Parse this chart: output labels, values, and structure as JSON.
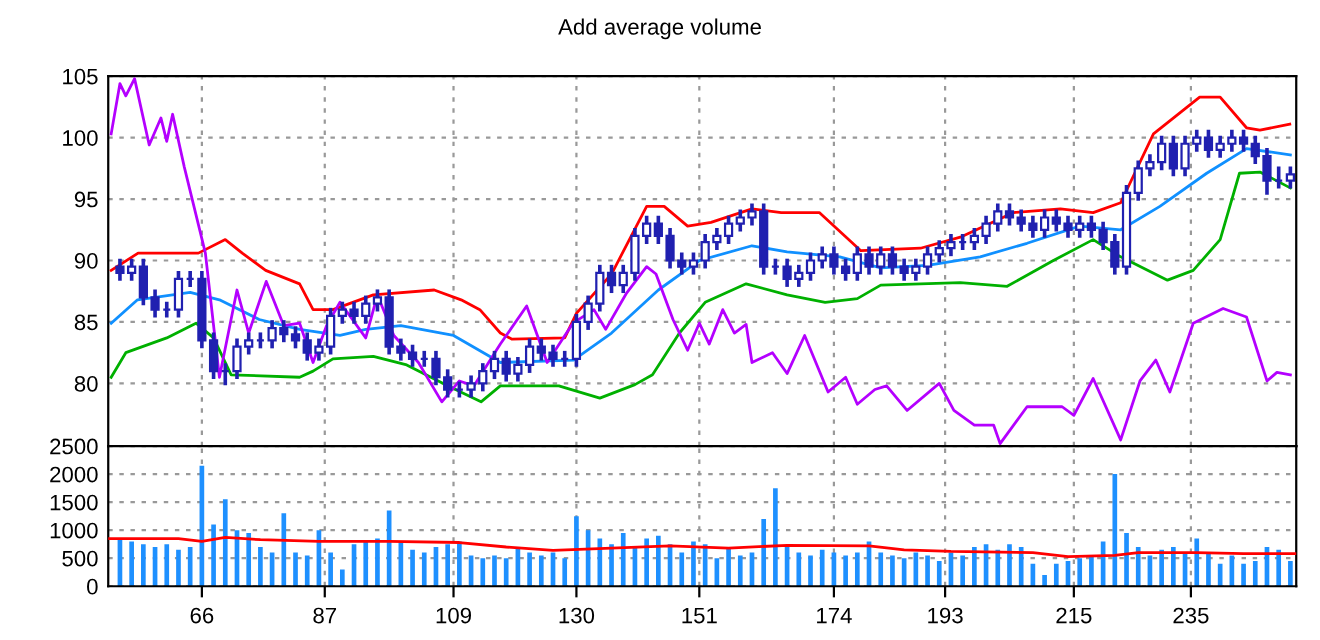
{
  "chart_data": [
    {
      "type": "candlestick",
      "title": "Add average volume",
      "color": "#2020b0",
      "x": [
        52,
        54,
        56,
        58,
        60,
        62,
        64,
        66,
        68,
        70,
        72,
        74,
        76,
        78,
        80,
        82,
        84,
        86,
        88,
        90,
        92,
        94,
        96,
        98,
        100,
        102,
        104,
        106,
        108,
        110,
        112,
        114,
        116,
        118,
        120,
        122,
        124,
        126,
        128,
        130,
        132,
        134,
        136,
        138,
        140,
        142,
        144,
        146,
        148,
        150,
        152,
        154,
        156,
        158,
        160,
        162,
        164,
        166,
        168,
        170,
        172,
        174,
        176,
        178,
        180,
        182,
        184,
        186,
        188,
        190,
        192,
        194,
        196,
        198,
        200,
        202,
        204,
        206,
        208,
        210,
        212,
        214,
        216,
        218,
        220,
        222,
        224,
        226,
        228,
        230,
        232,
        234,
        236,
        238,
        240,
        242,
        244,
        246,
        248,
        250,
        252
      ],
      "ohlc": [
        [
          89.5,
          90,
          88.5,
          89
        ],
        [
          89,
          90,
          88.5,
          89.5
        ],
        [
          89.5,
          90,
          86.5,
          87
        ],
        [
          87,
          87.5,
          85.5,
          86
        ],
        [
          86,
          86.5,
          85.5,
          86
        ],
        [
          86,
          89,
          85.5,
          88.5
        ],
        [
          88.5,
          89,
          88,
          88.5
        ],
        [
          88.5,
          89,
          83,
          83.5
        ],
        [
          83.5,
          84,
          80.5,
          81
        ],
        [
          81,
          81.5,
          80,
          81
        ],
        [
          81,
          83.5,
          80.5,
          83
        ],
        [
          83,
          84,
          82.5,
          83.5
        ],
        [
          83.5,
          84,
          83,
          83.5
        ],
        [
          83.5,
          85,
          83,
          84.5
        ],
        [
          84.5,
          85,
          83.5,
          84
        ],
        [
          84,
          84.5,
          83,
          83.5
        ],
        [
          83.5,
          84,
          82,
          82.5
        ],
        [
          82.5,
          83.5,
          82,
          83
        ],
        [
          83,
          86,
          82.5,
          85.5
        ],
        [
          85.5,
          86.5,
          85,
          86
        ],
        [
          86,
          86.5,
          85,
          85.5
        ],
        [
          85.5,
          87,
          85,
          86.5
        ],
        [
          86.5,
          87.5,
          86,
          87
        ],
        [
          87,
          87.5,
          82.5,
          83
        ],
        [
          83,
          83.5,
          82,
          82.5
        ],
        [
          82.5,
          83,
          81.5,
          82
        ],
        [
          82,
          82.5,
          81.5,
          82
        ],
        [
          82,
          82.5,
          80,
          80.5
        ],
        [
          80.5,
          81,
          79,
          79.5
        ],
        [
          79.5,
          80,
          79,
          79.5
        ],
        [
          79.5,
          80.5,
          79,
          80
        ],
        [
          80,
          81.5,
          79.5,
          81
        ],
        [
          81,
          82.5,
          80.5,
          82
        ],
        [
          82,
          82.5,
          80.3,
          80.8
        ],
        [
          80.8,
          82,
          80.3,
          81.5
        ],
        [
          81.5,
          83.5,
          81,
          83
        ],
        [
          83,
          83.5,
          82,
          82.5
        ],
        [
          82.5,
          83,
          81.5,
          82
        ],
        [
          82,
          82.5,
          81.5,
          82
        ],
        [
          82,
          85.5,
          81.5,
          85
        ],
        [
          85,
          87,
          84.5,
          86.5
        ],
        [
          86.5,
          89.5,
          86,
          89
        ],
        [
          89,
          89.5,
          87.5,
          88
        ],
        [
          88,
          89.5,
          87.5,
          89
        ],
        [
          89,
          92.5,
          88.5,
          92
        ],
        [
          92,
          93.5,
          91.5,
          93
        ],
        [
          93,
          93.5,
          91.5,
          92
        ],
        [
          92,
          92.5,
          89.5,
          90
        ],
        [
          90,
          90.5,
          89,
          89.5
        ],
        [
          89.5,
          90.5,
          89,
          90
        ],
        [
          90,
          92,
          89.5,
          91.5
        ],
        [
          91.5,
          92.5,
          91,
          92
        ],
        [
          92,
          93.5,
          91.5,
          93
        ],
        [
          93,
          94,
          92.5,
          93.5
        ],
        [
          93.5,
          94.5,
          93,
          94
        ],
        [
          94,
          94.5,
          89,
          89.5
        ],
        [
          89.5,
          90,
          89,
          89.5
        ],
        [
          89.5,
          90,
          88,
          88.5
        ],
        [
          88.5,
          89.5,
          88,
          89
        ],
        [
          89,
          90.5,
          88.5,
          90
        ],
        [
          90,
          91,
          89.5,
          90.5
        ],
        [
          90.5,
          91,
          89,
          89.5
        ],
        [
          89.5,
          90,
          88.5,
          89
        ],
        [
          89,
          91,
          88.5,
          90.5
        ],
        [
          90.5,
          91,
          89,
          89.5
        ],
        [
          89.5,
          91,
          89,
          90.5
        ],
        [
          90.5,
          91,
          89,
          89.5
        ],
        [
          89.5,
          90,
          88.5,
          89
        ],
        [
          89,
          90,
          88.5,
          89.5
        ],
        [
          89.5,
          91,
          89,
          90.5
        ],
        [
          90.5,
          91.5,
          90,
          91
        ],
        [
          91,
          92,
          90.5,
          91.5
        ],
        [
          91.5,
          92,
          91,
          91.5
        ],
        [
          91.5,
          92.5,
          91,
          92
        ],
        [
          92,
          93.5,
          91.5,
          93
        ],
        [
          93,
          94.5,
          92.5,
          94
        ],
        [
          94,
          94.5,
          93,
          93.5
        ],
        [
          93.5,
          94,
          92.5,
          93
        ],
        [
          93,
          93.5,
          92,
          92.5
        ],
        [
          92.5,
          94,
          92,
          93.5
        ],
        [
          93.5,
          94,
          92.5,
          93
        ],
        [
          93,
          93.5,
          92,
          92.5
        ],
        [
          92.5,
          93.5,
          92,
          93
        ],
        [
          93,
          93.5,
          92,
          92.5
        ],
        [
          92.5,
          93,
          91,
          91.5
        ],
        [
          91.5,
          92,
          89,
          89.5
        ],
        [
          89.5,
          96,
          89,
          95.5
        ],
        [
          95.5,
          98,
          95,
          97.5
        ],
        [
          97.5,
          98.5,
          97,
          98
        ],
        [
          98,
          100,
          97.5,
          99.5
        ],
        [
          99.5,
          100,
          97,
          97.5
        ],
        [
          97.5,
          100,
          97,
          99.5
        ],
        [
          99.5,
          100.5,
          99,
          100
        ],
        [
          100,
          100.5,
          98.5,
          99
        ],
        [
          99,
          100,
          98.5,
          99.5
        ],
        [
          99.5,
          100.5,
          99,
          100
        ],
        [
          100,
          100.5,
          99,
          99.5
        ],
        [
          99.5,
          100,
          98,
          98.5
        ],
        [
          98.5,
          99,
          95.5,
          96.5
        ],
        [
          96.5,
          97.5,
          96,
          96.5
        ],
        [
          96.5,
          97.5,
          96,
          97
        ]
      ],
      "series": [
        {
          "type": "line",
          "color": "#ff0000",
          "x": [
            50.5,
            55.1,
            65.4,
            70,
            72.9,
            76.9,
            82.7,
            85,
            88.4,
            95.3,
            105.7,
            110.3,
            113.5,
            117,
            119,
            128,
            130,
            136,
            142,
            145,
            149,
            153,
            160,
            165,
            171.5,
            178.6,
            188.8,
            195.6,
            204.7,
            212.7,
            218.3,
            223,
            228.6,
            236.5,
            240,
            244.5,
            246.8,
            251.9
          ],
          "values": [
            89.2,
            90.6,
            90.6,
            91.7,
            90.6,
            89.2,
            88.1,
            86,
            86,
            87.2,
            87.6,
            86.8,
            86,
            84.1,
            83.6,
            83.7,
            85.7,
            88.9,
            94.4,
            94.4,
            92.8,
            93.1,
            94.2,
            93.9,
            93.9,
            90.8,
            91,
            91.9,
            93.9,
            94.2,
            93.9,
            94.7,
            100.3,
            103.3,
            103.3,
            100.8,
            100.6,
            101.1
          ]
        },
        {
          "type": "line",
          "color": "#1090ff",
          "x": [
            50.5,
            55,
            64,
            69,
            75.8,
            82.7,
            89.6,
            94,
            100,
            109,
            117,
            129.5,
            136,
            144,
            151,
            160,
            166,
            175,
            182,
            190,
            199,
            207,
            216,
            223,
            229.7,
            237.7,
            244.5,
            252
          ],
          "values": [
            84.9,
            86.8,
            87.4,
            86.8,
            85.2,
            84.4,
            83.9,
            84.4,
            84.7,
            83.9,
            81.7,
            81.9,
            84.1,
            87.6,
            90,
            91.2,
            90.7,
            90.3,
            89.4,
            89.6,
            90.3,
            91.4,
            92.8,
            92.5,
            94.4,
            97.1,
            99.1,
            98.6
          ]
        },
        {
          "type": "line",
          "color": "#00b000",
          "x": [
            50.5,
            53,
            60,
            65,
            68,
            71,
            82.7,
            85,
            88.4,
            95.3,
            101,
            108,
            113.7,
            117,
            127,
            134,
            140,
            143,
            147.6,
            152,
            159,
            166,
            172.5,
            178,
            182,
            195.6,
            203.6,
            211.5,
            218.3,
            223,
            231,
            235.4,
            240,
            243.3,
            246.8,
            252
          ],
          "values": [
            80.5,
            82.5,
            83.7,
            84.9,
            83.7,
            80.7,
            80.5,
            81,
            82,
            82.2,
            81.5,
            79.8,
            78.5,
            79.8,
            79.8,
            78.8,
            79.9,
            80.7,
            84.1,
            86.6,
            88.1,
            87.2,
            86.6,
            86.9,
            88,
            88.2,
            87.9,
            90,
            91.7,
            90.3,
            88.4,
            89.2,
            91.7,
            97.1,
            97.2,
            95.9
          ]
        },
        {
          "type": "line",
          "color": "#b400ff",
          "x": [
            50.5,
            52,
            53,
            54.5,
            57,
            59,
            60,
            61,
            63,
            66.6,
            69,
            72,
            74,
            77,
            80,
            82.7,
            85,
            87.3,
            89.6,
            94,
            96,
            98.8,
            103,
            107,
            110,
            112.5,
            115,
            117,
            121.5,
            125,
            129.4,
            133,
            135,
            138.5,
            142,
            143.6,
            146.5,
            149,
            151,
            152.7,
            155,
            157,
            159,
            160,
            163.5,
            166,
            169,
            173,
            176,
            178,
            181,
            183,
            186.5,
            192,
            194.5,
            198,
            201.3,
            202.4,
            207,
            213,
            215,
            218.3,
            223,
            226.3,
            229,
            231.4,
            235.4,
            240.5,
            244.5,
            248,
            249.7,
            252
          ],
          "values": [
            100.3,
            104.4,
            103.4,
            104.8,
            99.4,
            101.6,
            99.7,
            101.9,
            97.6,
            90.6,
            80.5,
            87.6,
            84.1,
            88.3,
            84.7,
            84.9,
            81.7,
            84.7,
            86.6,
            83.7,
            87.2,
            83.9,
            81.7,
            78.5,
            80.2,
            79.8,
            81.7,
            83.2,
            86.3,
            81.7,
            84.9,
            86,
            84.4,
            87.3,
            89.5,
            88.9,
            85.2,
            82.7,
            84.9,
            83.2,
            86,
            84.1,
            84.8,
            81.7,
            82.5,
            80.8,
            83.9,
            79.3,
            80.5,
            78.3,
            79.5,
            79.8,
            77.8,
            80,
            77.8,
            76.6,
            76.6,
            75.1,
            78.1,
            78.1,
            77.4,
            80.4,
            75.4,
            80.2,
            81.9,
            79.3,
            84.9,
            86.1,
            85.4,
            80.2,
            80.9,
            80.7
          ]
        }
      ],
      "xlim": [
        50,
        253
      ],
      "xticks": [
        66,
        87,
        109,
        130,
        151,
        174,
        193,
        215,
        235
      ],
      "ylim": [
        74.9,
        105
      ],
      "yticks": [
        80,
        85,
        90,
        95,
        100,
        105
      ],
      "grid": true,
      "tick_labels": "y"
    },
    {
      "type": "bar",
      "color": "#1e90ff",
      "x": [
        52,
        54,
        56,
        58,
        60,
        62,
        64,
        66,
        68,
        70,
        72,
        74,
        76,
        78,
        80,
        82,
        84,
        86,
        88,
        90,
        92,
        94,
        96,
        98,
        100,
        102,
        104,
        106,
        108,
        110,
        112,
        114,
        116,
        118,
        120,
        122,
        124,
        126,
        128,
        130,
        132,
        134,
        136,
        138,
        140,
        142,
        144,
        146,
        148,
        150,
        152,
        154,
        156,
        158,
        160,
        162,
        164,
        166,
        168,
        170,
        172,
        174,
        176,
        178,
        180,
        182,
        184,
        186,
        188,
        190,
        192,
        194,
        196,
        198,
        200,
        202,
        204,
        206,
        208,
        210,
        212,
        214,
        216,
        218,
        220,
        222,
        224,
        226,
        228,
        230,
        232,
        234,
        236,
        238,
        240,
        242,
        244,
        246,
        248,
        250,
        252
      ],
      "values": [
        850,
        800,
        750,
        700,
        750,
        650,
        700,
        2150,
        1100,
        1550,
        1000,
        950,
        700,
        600,
        1300,
        600,
        550,
        1000,
        600,
        300,
        750,
        800,
        850,
        1350,
        800,
        650,
        600,
        700,
        750,
        800,
        550,
        500,
        550,
        500,
        700,
        600,
        550,
        600,
        500,
        1250,
        1000,
        850,
        750,
        950,
        700,
        850,
        900,
        750,
        600,
        800,
        750,
        500,
        700,
        550,
        600,
        1200,
        1750,
        700,
        600,
        550,
        650,
        600,
        550,
        600,
        800,
        600,
        550,
        500,
        600,
        550,
        450,
        600,
        550,
        700,
        750,
        650,
        750,
        700,
        400,
        200,
        400,
        450,
        500,
        550,
        800,
        2000,
        950,
        700,
        550,
        650,
        700,
        600,
        850,
        600,
        400,
        550,
        400,
        450,
        700,
        650,
        450
      ],
      "series": [
        {
          "type": "line",
          "color": "#ff0000",
          "x": [
            50,
            62,
            66,
            70,
            76,
            86,
            98,
            110,
            118,
            126,
            136,
            146,
            156,
            166,
            180,
            186,
            194,
            208,
            214,
            222,
            226,
            236,
            244,
            253
          ],
          "values": [
            850,
            850,
            800,
            870,
            830,
            800,
            800,
            780,
            700,
            640,
            680,
            720,
            680,
            730,
            720,
            650,
            620,
            600,
            530,
            550,
            600,
            600,
            580,
            580
          ]
        }
      ],
      "xlim": [
        50,
        253
      ],
      "xticks": [
        66,
        87,
        109,
        130,
        151,
        174,
        193,
        215,
        235
      ],
      "ylim": [
        0,
        2500
      ],
      "yticks": [
        0,
        500,
        1000,
        1500,
        2000,
        2500
      ],
      "grid": true
    }
  ]
}
